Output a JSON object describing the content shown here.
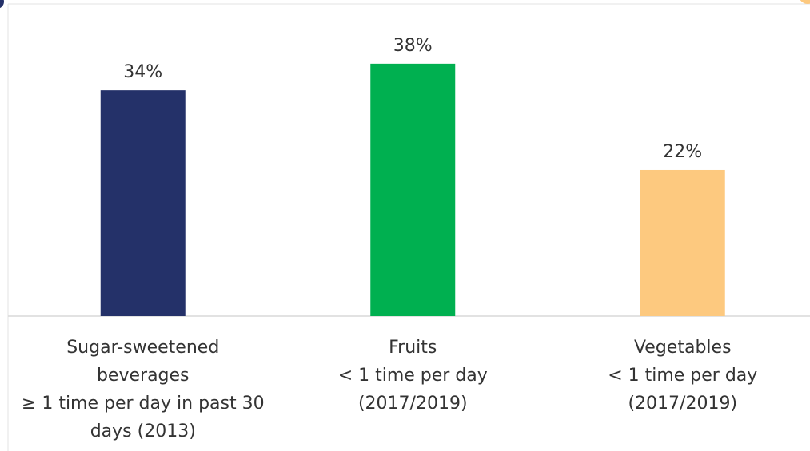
{
  "chart_data": {
    "type": "bar",
    "categories": [
      [
        "Sugar-sweetened",
        "beverages",
        "≥ 1 time per day in past 30",
        "days (2013)"
      ],
      [
        "Fruits",
        "< 1 time per day",
        "(2017/2019)"
      ],
      [
        "Vegetables",
        "< 1 time per day",
        "(2017/2019)"
      ]
    ],
    "values": [
      34,
      38,
      22
    ],
    "value_labels": [
      "34%",
      "38%",
      "22%"
    ],
    "colors": [
      "#243169",
      "#00b050",
      "#fdc97f"
    ],
    "ylim": [
      0,
      47
    ]
  }
}
